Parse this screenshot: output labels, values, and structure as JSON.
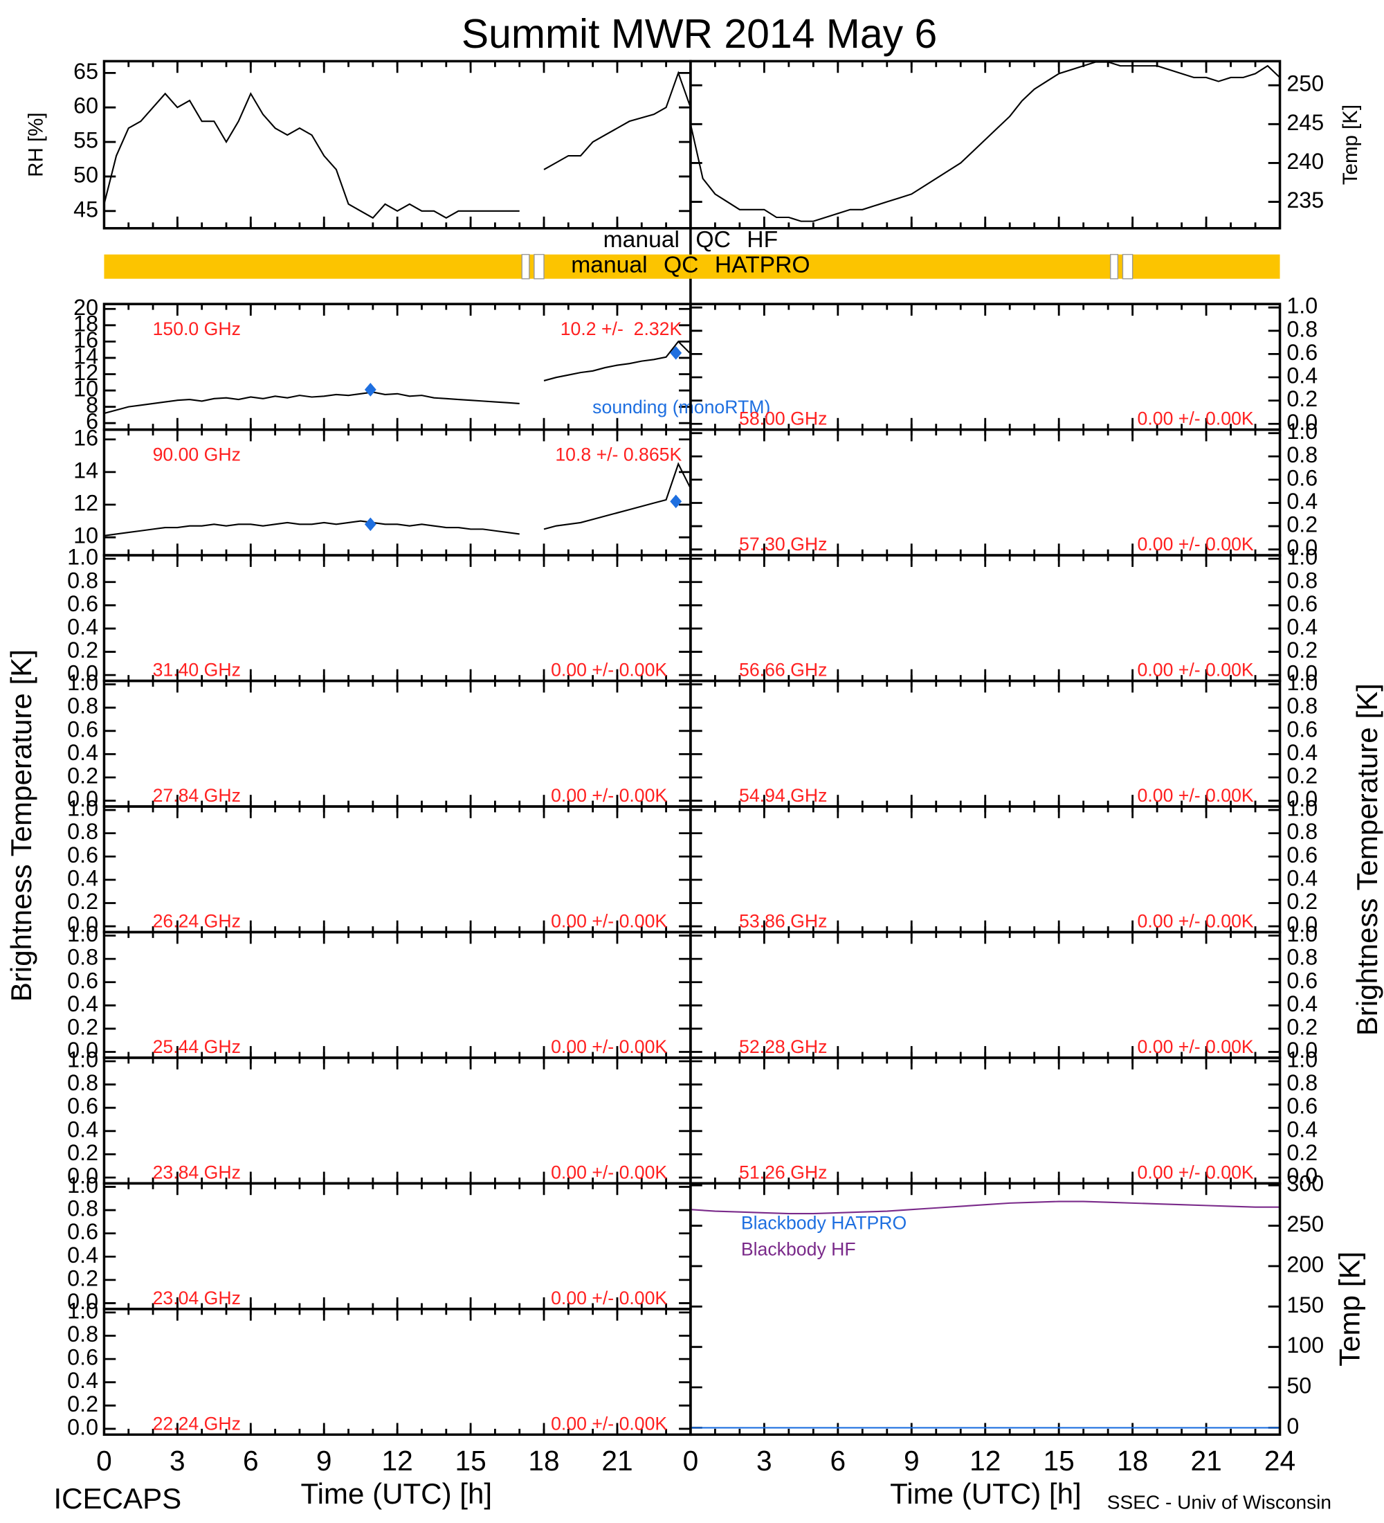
{
  "title": "Summit MWR 2014 May  6",
  "y_label": "Brightness Temperature [K]",
  "footer_left": "ICECAPS",
  "footer_right": "SSEC - Univ of Wisconsin",
  "xlim": [
    0,
    24
  ],
  "x_minor_ticks": [
    0,
    1,
    2,
    3,
    4,
    5,
    6,
    7,
    8,
    9,
    10,
    11,
    12,
    13,
    14,
    15,
    16,
    17,
    18,
    19,
    20,
    21,
    22,
    23,
    24
  ],
  "x_axes": [
    {
      "xticks": [
        0,
        3,
        6,
        9,
        12,
        15,
        18,
        21
      ],
      "label": "Time (UTC) [h]"
    },
    {
      "xticks": [
        0,
        3,
        6,
        9,
        12,
        15,
        18,
        21,
        24
      ],
      "label": "Time (UTC) [h]"
    }
  ],
  "chart_data": [
    {
      "type": "line",
      "y_label": "RH [%]",
      "ylim": [
        42.5,
        66.7
      ],
      "yticks": [
        45,
        50,
        55,
        60,
        65
      ],
      "series": [
        {
          "color": "#000000",
          "x": [
            0,
            0.5,
            1,
            1.5,
            2,
            2.5,
            3,
            3.5,
            4,
            4.5,
            5,
            5.5,
            6,
            6.5,
            7,
            7.5,
            8,
            8.5,
            9,
            9.5,
            10,
            10.5,
            11,
            11.5,
            12,
            12.5,
            13,
            13.5,
            14,
            14.5,
            15,
            15.5,
            16,
            16.5,
            17,
            17.5,
            18,
            18.5,
            19,
            19.5,
            20,
            20.5,
            21,
            21.5,
            22,
            22.5,
            23,
            23.5,
            24
          ],
          "values": [
            46,
            53,
            57,
            58,
            60,
            62,
            60,
            61,
            58,
            58,
            55,
            58,
            62,
            59,
            57,
            56,
            57,
            56,
            53,
            51,
            46,
            45,
            44,
            46,
            45,
            46,
            45,
            45,
            44,
            45,
            45,
            45,
            45,
            45,
            45,
            null,
            51,
            52,
            53,
            53,
            55,
            56,
            57,
            58,
            58.5,
            59,
            60,
            65,
            60
          ]
        }
      ]
    },
    {
      "type": "line",
      "y_label": "Temp [K]",
      "ylim": [
        231.6,
        253.1
      ],
      "yticks": [
        235,
        240,
        245,
        250
      ],
      "series": [
        {
          "color": "#000000",
          "x": [
            0,
            0.5,
            1,
            1.5,
            2,
            2.5,
            3,
            3.5,
            4,
            4.5,
            5,
            5.5,
            6,
            6.5,
            7,
            7.5,
            8,
            8.5,
            9,
            9.5,
            10,
            10.5,
            11,
            11.5,
            12,
            12.5,
            13,
            13.5,
            14,
            14.5,
            15,
            15.5,
            16,
            16.5,
            17,
            17.5,
            18,
            18.5,
            19,
            19.5,
            20,
            20.5,
            21,
            21.5,
            22,
            22.5,
            23,
            23.5,
            24
          ],
          "values": [
            245,
            238,
            236,
            235,
            234,
            234,
            234,
            233,
            233,
            232.5,
            232.5,
            233,
            233.5,
            234,
            234,
            234.5,
            235,
            235.5,
            236,
            237,
            238,
            239,
            240,
            241.5,
            243,
            244.5,
            246,
            248,
            249.5,
            250.5,
            251.5,
            252,
            252.5,
            253,
            253,
            252.5,
            252.5,
            252.5,
            252.5,
            252,
            251.5,
            251,
            251,
            250.5,
            251,
            251,
            251.5,
            252.5,
            251
          ]
        }
      ]
    },
    {
      "type": "flag",
      "labels": [
        "manual QC HF",
        "manual QC HATPRO"
      ],
      "color": "#fcc400",
      "gaps": [
        [
          17.1,
          17.4
        ],
        [
          17.6,
          18.0
        ]
      ]
    },
    {
      "type": "line",
      "label": "150.0 GHz",
      "stats": "10.2 +/-  2.32K",
      "ylim": [
        5.2,
        20.6
      ],
      "yticks": [
        6,
        8,
        10,
        12,
        14,
        16,
        18,
        20
      ],
      "series": [
        {
          "color": "#000000",
          "x": [
            0,
            0.5,
            1,
            1.5,
            2,
            2.5,
            3,
            3.5,
            4,
            4.5,
            5,
            5.5,
            6,
            6.5,
            7,
            7.5,
            8,
            8.5,
            9,
            9.5,
            10,
            10.5,
            11,
            11.5,
            12,
            12.5,
            13,
            13.5,
            14,
            14.5,
            15,
            15.5,
            16,
            16.5,
            17,
            17.5,
            18,
            18.5,
            19,
            19.5,
            20,
            20.5,
            21,
            21.5,
            22,
            22.5,
            23,
            23.5,
            24
          ],
          "values": [
            7.2,
            7.6,
            8.0,
            8.2,
            8.4,
            8.6,
            8.8,
            8.9,
            8.7,
            9.0,
            9.1,
            8.9,
            9.2,
            9.0,
            9.3,
            9.1,
            9.4,
            9.2,
            9.3,
            9.5,
            9.4,
            9.6,
            9.8,
            9.5,
            9.6,
            9.3,
            9.4,
            9.1,
            9.0,
            8.9,
            8.8,
            8.7,
            8.6,
            8.5,
            8.4,
            null,
            11.2,
            11.6,
            11.9,
            12.2,
            12.4,
            12.8,
            13.1,
            13.3,
            13.6,
            13.8,
            14.1,
            16.0,
            14.5
          ]
        },
        {
          "type": "scatter",
          "name": "sounding (monoRTM)",
          "color": "#1e6fe0",
          "x": [
            10.9,
            23.4
          ],
          "values": [
            10.1,
            14.6
          ]
        }
      ]
    },
    {
      "type": "line",
      "label": "90.00 GHz",
      "stats": "10.8 +/- 0.865K",
      "ylim": [
        8.9,
        16.6
      ],
      "yticks": [
        10,
        12,
        14,
        16
      ],
      "series": [
        {
          "color": "#000000",
          "x": [
            0,
            0.5,
            1,
            1.5,
            2,
            2.5,
            3,
            3.5,
            4,
            4.5,
            5,
            5.5,
            6,
            6.5,
            7,
            7.5,
            8,
            8.5,
            9,
            9.5,
            10,
            10.5,
            11,
            11.5,
            12,
            12.5,
            13,
            13.5,
            14,
            14.5,
            15,
            15.5,
            16,
            16.5,
            17,
            17.5,
            18,
            18.5,
            19,
            19.5,
            20,
            20.5,
            21,
            21.5,
            22,
            22.5,
            23,
            23.5,
            24
          ],
          "values": [
            10.1,
            10.2,
            10.3,
            10.4,
            10.5,
            10.6,
            10.6,
            10.7,
            10.7,
            10.8,
            10.7,
            10.8,
            10.8,
            10.7,
            10.8,
            10.9,
            10.8,
            10.8,
            10.9,
            10.8,
            10.9,
            11.0,
            10.9,
            10.8,
            10.8,
            10.7,
            10.8,
            10.7,
            10.6,
            10.6,
            10.5,
            10.5,
            10.4,
            10.3,
            10.2,
            null,
            10.5,
            10.7,
            10.8,
            10.9,
            11.1,
            11.3,
            11.5,
            11.7,
            11.9,
            12.1,
            12.3,
            14.5,
            13.0
          ]
        },
        {
          "type": "scatter",
          "color": "#1e6fe0",
          "x": [
            10.9,
            23.4
          ],
          "values": [
            10.8,
            12.2
          ]
        }
      ]
    },
    {
      "type": "line",
      "label": "31.40 GHz",
      "stats": "0.00 +/- 0.00K",
      "ylim": [
        -0.05,
        1.03
      ],
      "yticks": [
        {
          "value": 0,
          "label": "0.0"
        },
        {
          "value": 0.2,
          "label": "0.2"
        },
        {
          "value": 0.4,
          "label": "0.4"
        },
        {
          "value": 0.6,
          "label": "0.6"
        },
        {
          "value": 0.8,
          "label": "0.8"
        },
        {
          "value": 1,
          "label": "1.0"
        }
      ]
    },
    {
      "type": "line",
      "label": "27.84 GHz",
      "stats": "0.00 +/- 0.00K",
      "ylim": [
        -0.05,
        1.03
      ],
      "yticks": [
        {
          "value": 0,
          "label": "0.0"
        },
        {
          "value": 0.2,
          "label": "0.2"
        },
        {
          "value": 0.4,
          "label": "0.4"
        },
        {
          "value": 0.6,
          "label": "0.6"
        },
        {
          "value": 0.8,
          "label": "0.8"
        },
        {
          "value": 1,
          "label": "1.0"
        }
      ]
    },
    {
      "type": "line",
      "label": "26.24 GHz",
      "stats": "0.00 +/- 0.00K",
      "ylim": [
        -0.05,
        1.03
      ],
      "yticks": [
        {
          "value": 0,
          "label": "0.0"
        },
        {
          "value": 0.2,
          "label": "0.2"
        },
        {
          "value": 0.4,
          "label": "0.4"
        },
        {
          "value": 0.6,
          "label": "0.6"
        },
        {
          "value": 0.8,
          "label": "0.8"
        },
        {
          "value": 1,
          "label": "1.0"
        }
      ]
    },
    {
      "type": "line",
      "label": "25.44 GHz",
      "stats": "0.00 +/- 0.00K",
      "ylim": [
        -0.05,
        1.03
      ],
      "yticks": [
        {
          "value": 0,
          "label": "0.0"
        },
        {
          "value": 0.2,
          "label": "0.2"
        },
        {
          "value": 0.4,
          "label": "0.4"
        },
        {
          "value": 0.6,
          "label": "0.6"
        },
        {
          "value": 0.8,
          "label": "0.8"
        },
        {
          "value": 1,
          "label": "1.0"
        }
      ]
    },
    {
      "type": "line",
      "label": "23.84 GHz",
      "stats": "0.00 +/- 0.00K",
      "ylim": [
        -0.05,
        1.03
      ],
      "yticks": [
        {
          "value": 0,
          "label": "0.0"
        },
        {
          "value": 0.2,
          "label": "0.2"
        },
        {
          "value": 0.4,
          "label": "0.4"
        },
        {
          "value": 0.6,
          "label": "0.6"
        },
        {
          "value": 0.8,
          "label": "0.8"
        },
        {
          "value": 1,
          "label": "1.0"
        }
      ]
    },
    {
      "type": "line",
      "label": "23.04 GHz",
      "stats": "0.00 +/- 0.00K",
      "ylim": [
        -0.05,
        1.03
      ],
      "yticks": [
        {
          "value": 0,
          "label": "0.0"
        },
        {
          "value": 0.2,
          "label": "0.2"
        },
        {
          "value": 0.4,
          "label": "0.4"
        },
        {
          "value": 0.6,
          "label": "0.6"
        },
        {
          "value": 0.8,
          "label": "0.8"
        },
        {
          "value": 1,
          "label": "1.0"
        }
      ]
    },
    {
      "type": "line",
      "label": "22.24 GHz",
      "stats": "0.00 +/- 0.00K",
      "ylim": [
        -0.05,
        1.03
      ],
      "yticks": [
        {
          "value": 0,
          "label": "0.0"
        },
        {
          "value": 0.2,
          "label": "0.2"
        },
        {
          "value": 0.4,
          "label": "0.4"
        },
        {
          "value": 0.6,
          "label": "0.6"
        },
        {
          "value": 0.8,
          "label": "0.8"
        },
        {
          "value": 1,
          "label": "1.0"
        }
      ]
    },
    {
      "type": "line",
      "label": "58.00 GHz",
      "stats": "0.00 +/- 0.00K",
      "ylim": [
        -0.05,
        1.03
      ],
      "yticks": [
        {
          "value": 0,
          "label": "0.0"
        },
        {
          "value": 0.2,
          "label": "0.2"
        },
        {
          "value": 0.4,
          "label": "0.4"
        },
        {
          "value": 0.6,
          "label": "0.6"
        },
        {
          "value": 0.8,
          "label": "0.8"
        },
        {
          "value": 1,
          "label": "1.0"
        }
      ]
    },
    {
      "type": "line",
      "label": "57.30 GHz",
      "stats": "0.00 +/- 0.00K",
      "ylim": [
        -0.05,
        1.03
      ],
      "yticks": [
        {
          "value": 0,
          "label": "0.0"
        },
        {
          "value": 0.2,
          "label": "0.2"
        },
        {
          "value": 0.4,
          "label": "0.4"
        },
        {
          "value": 0.6,
          "label": "0.6"
        },
        {
          "value": 0.8,
          "label": "0.8"
        },
        {
          "value": 1,
          "label": "1.0"
        }
      ]
    },
    {
      "type": "line",
      "label": "56.66 GHz",
      "stats": "0.00 +/- 0.00K",
      "ylim": [
        -0.05,
        1.03
      ],
      "yticks": [
        {
          "value": 0,
          "label": "0.0"
        },
        {
          "value": 0.2,
          "label": "0.2"
        },
        {
          "value": 0.4,
          "label": "0.4"
        },
        {
          "value": 0.6,
          "label": "0.6"
        },
        {
          "value": 0.8,
          "label": "0.8"
        },
        {
          "value": 1,
          "label": "1.0"
        }
      ]
    },
    {
      "type": "line",
      "label": "54.94 GHz",
      "stats": "0.00 +/- 0.00K",
      "ylim": [
        -0.05,
        1.03
      ],
      "yticks": [
        {
          "value": 0,
          "label": "0.0"
        },
        {
          "value": 0.2,
          "label": "0.2"
        },
        {
          "value": 0.4,
          "label": "0.4"
        },
        {
          "value": 0.6,
          "label": "0.6"
        },
        {
          "value": 0.8,
          "label": "0.8"
        },
        {
          "value": 1,
          "label": "1.0"
        }
      ]
    },
    {
      "type": "line",
      "label": "53.86 GHz",
      "stats": "0.00 +/- 0.00K",
      "ylim": [
        -0.05,
        1.03
      ],
      "yticks": [
        {
          "value": 0,
          "label": "0.0"
        },
        {
          "value": 0.2,
          "label": "0.2"
        },
        {
          "value": 0.4,
          "label": "0.4"
        },
        {
          "value": 0.6,
          "label": "0.6"
        },
        {
          "value": 0.8,
          "label": "0.8"
        },
        {
          "value": 1,
          "label": "1.0"
        }
      ]
    },
    {
      "type": "line",
      "label": "52.28 GHz",
      "stats": "0.00 +/- 0.00K",
      "ylim": [
        -0.05,
        1.03
      ],
      "yticks": [
        {
          "value": 0,
          "label": "0.0"
        },
        {
          "value": 0.2,
          "label": "0.2"
        },
        {
          "value": 0.4,
          "label": "0.4"
        },
        {
          "value": 0.6,
          "label": "0.6"
        },
        {
          "value": 0.8,
          "label": "0.8"
        },
        {
          "value": 1,
          "label": "1.0"
        }
      ]
    },
    {
      "type": "line",
      "label": "51.26 GHz",
      "stats": "0.00 +/- 0.00K",
      "ylim": [
        -0.05,
        1.03
      ],
      "yticks": [
        {
          "value": 0,
          "label": "0.0"
        },
        {
          "value": 0.2,
          "label": "0.2"
        },
        {
          "value": 0.4,
          "label": "0.4"
        },
        {
          "value": 0.6,
          "label": "0.6"
        },
        {
          "value": 0.8,
          "label": "0.8"
        },
        {
          "value": 1,
          "label": "1.0"
        }
      ]
    },
    {
      "type": "line",
      "y_label": "Temp [K]",
      "ylim": [
        -8.5,
        302.4
      ],
      "yticks": [
        0,
        50,
        100,
        150,
        200,
        250,
        300
      ],
      "series": [
        {
          "name": "Blackbody HATPRO",
          "color": "#1e6fe0",
          "x": [
            0,
            1,
            2,
            3,
            4,
            5,
            6,
            7,
            8,
            9,
            10,
            11,
            12,
            13,
            14,
            15,
            16,
            17,
            18,
            19,
            20,
            21,
            22,
            23,
            24
          ],
          "values": [
            0,
            0,
            0,
            0,
            0,
            0,
            0,
            0,
            0,
            0,
            0,
            0,
            0,
            0,
            0,
            0,
            0,
            0,
            0,
            0,
            0,
            0,
            0,
            0,
            0
          ]
        },
        {
          "name": "Blackbody HF",
          "color": "#7a2a8a",
          "x": [
            0,
            1,
            2,
            3,
            4,
            5,
            6,
            7,
            8,
            9,
            10,
            11,
            12,
            13,
            14,
            15,
            16,
            17,
            18,
            19,
            20,
            21,
            22,
            23,
            24
          ],
          "values": [
            270,
            268,
            267,
            266,
            265,
            265,
            266,
            267,
            268,
            270,
            272,
            274,
            276,
            278,
            279,
            280,
            280,
            279,
            278,
            277,
            276,
            275,
            274,
            273,
            273
          ]
        }
      ]
    }
  ]
}
